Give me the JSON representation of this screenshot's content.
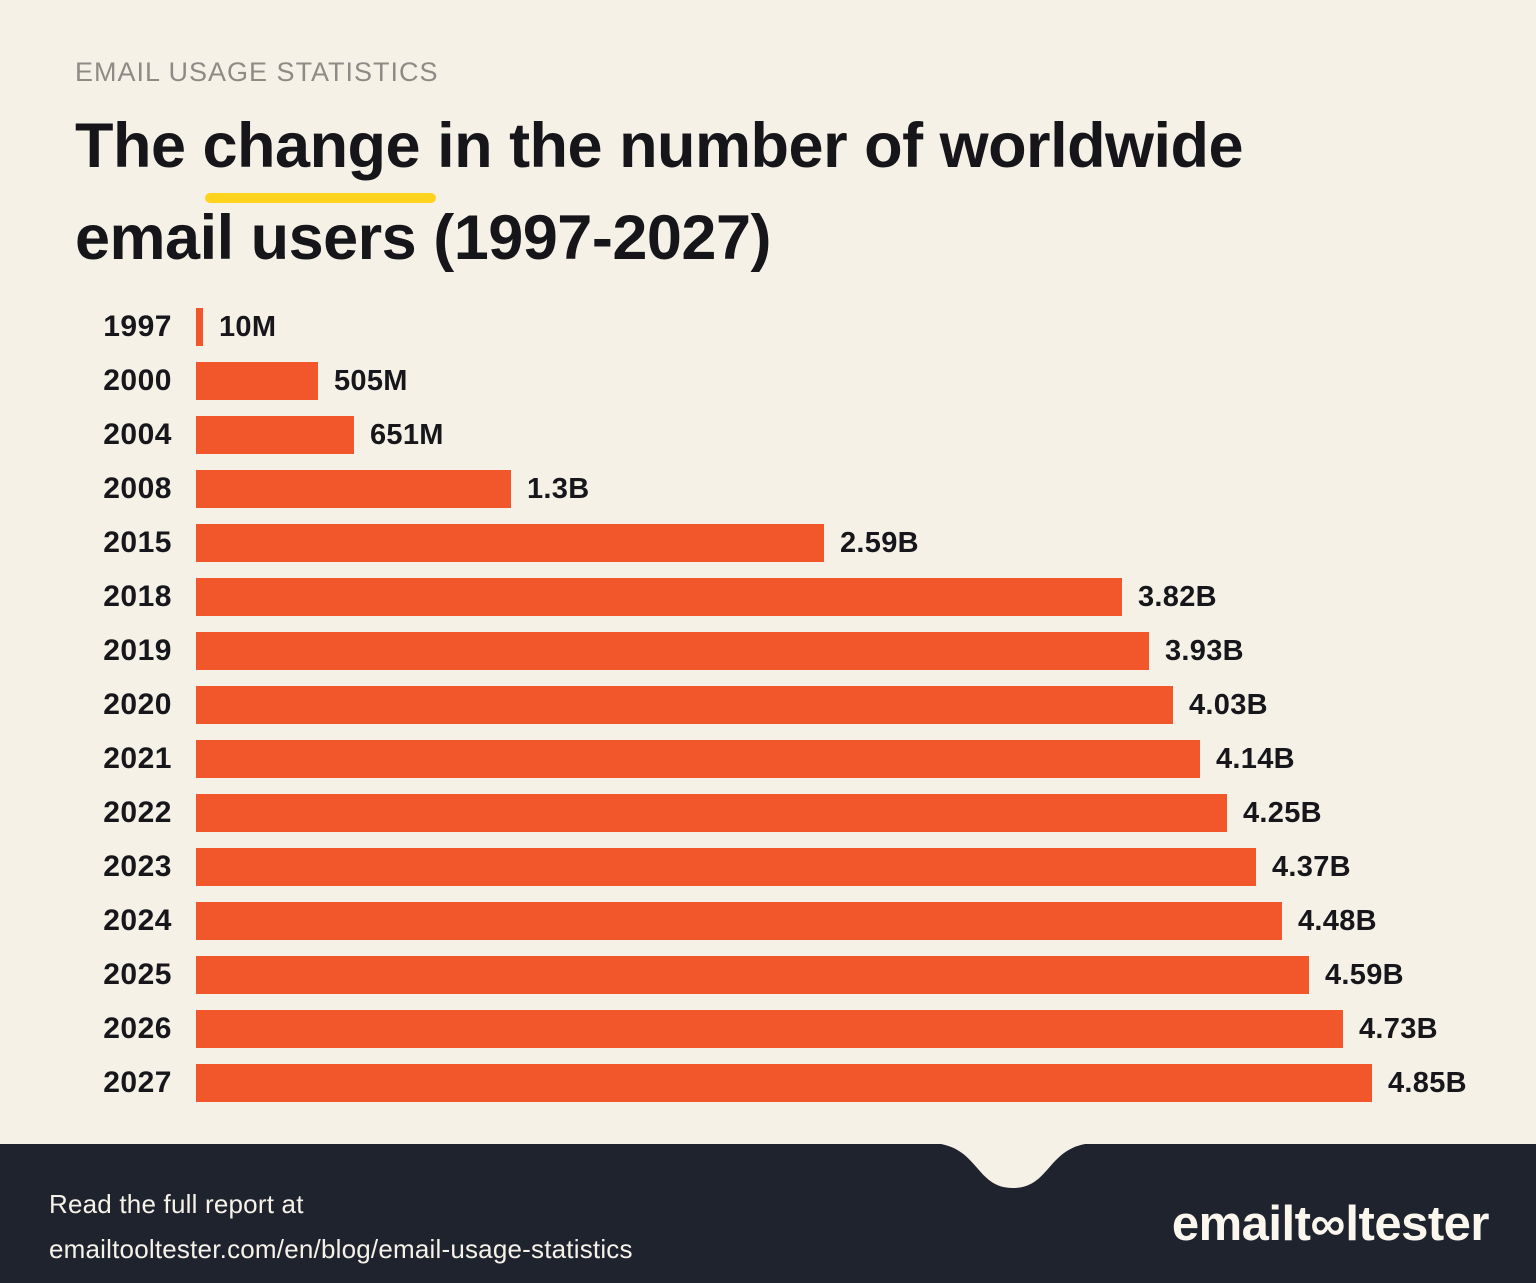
{
  "page": {
    "background_color": "#F5F1E7",
    "accent_color": "#F2562B",
    "highlight_color": "#FFD21E",
    "footer_background_color": "#1E232E"
  },
  "header": {
    "eyebrow": "EMAIL USAGE STATISTICS",
    "title_full": "The change in the number of worldwide email users (1997-2027)",
    "title_line1_start": "The ",
    "title_highlight": "change",
    "title_line1_rest": " in the number of worldwide",
    "title_line2": "email users (1997-2027)"
  },
  "chart_data": {
    "type": "bar",
    "orientation": "horizontal",
    "title": "The change in the number of worldwide email users (1997-2027)",
    "categories": [
      "1997",
      "2000",
      "2004",
      "2008",
      "2015",
      "2018",
      "2019",
      "2020",
      "2021",
      "2022",
      "2023",
      "2024",
      "2025",
      "2026",
      "2027"
    ],
    "values_millions": [
      10,
      505,
      651,
      1300,
      2590,
      3820,
      3930,
      4030,
      4140,
      4250,
      4370,
      4480,
      4590,
      4730,
      4850
    ],
    "value_labels": [
      "10M",
      "505M",
      "651M",
      "1.3B",
      "2.59B",
      "3.82B",
      "3.93B",
      "4.03B",
      "4.14B",
      "4.25B",
      "4.37B",
      "4.48B",
      "4.59B",
      "4.73B",
      "4.85B"
    ],
    "xlim_millions": [
      0,
      4850
    ],
    "bar_color": "#F2562B",
    "grid": false,
    "legend": "none",
    "value_label_position": "right-of-bar"
  },
  "footer": {
    "note_line1": "Read the full report at",
    "note_line2": "emailtooltester.com/en/blog/email-usage-statistics",
    "logo_text": "emailtooltester",
    "logo_prefix": "emailt",
    "logo_infinity": "∞",
    "logo_suffix": "ltester"
  }
}
